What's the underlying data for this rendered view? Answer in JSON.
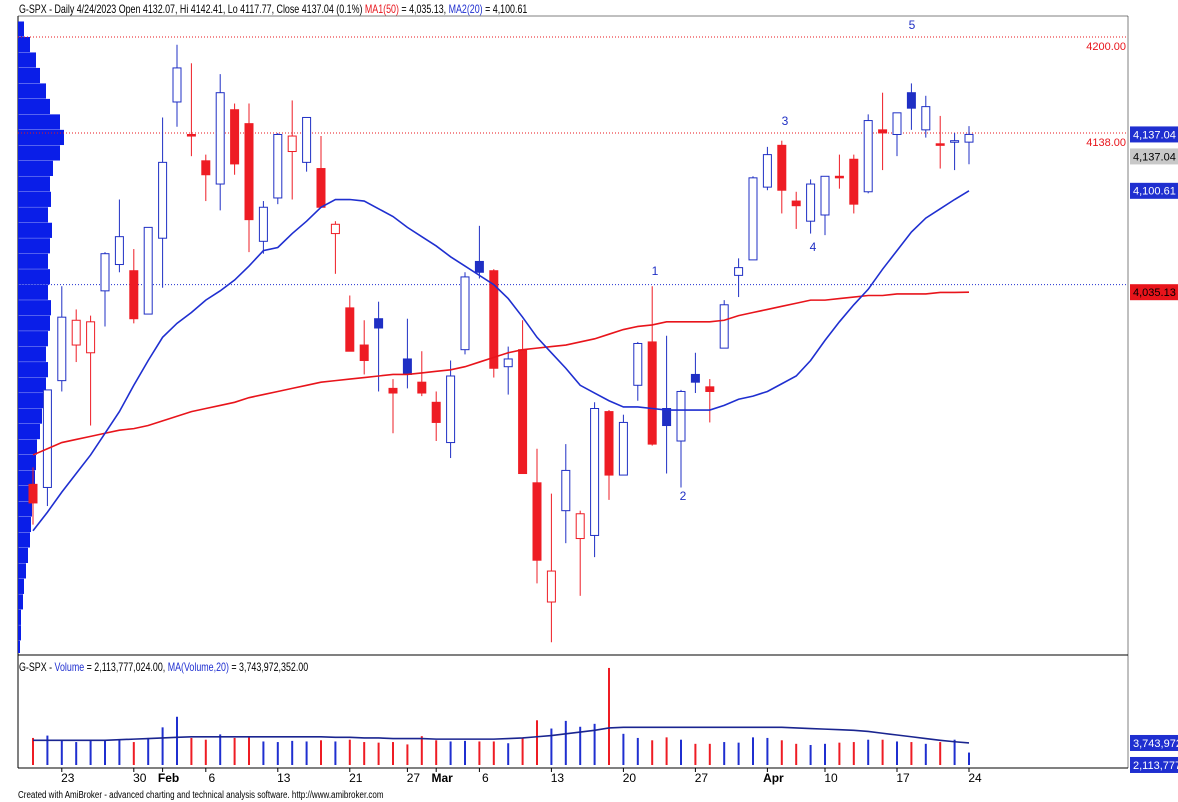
{
  "chart_data": [
    {
      "type": "candlestick",
      "title": "G-SPX - Daily 4/24/2023 Open 4132.07, Hi 4142.41, Lo 4117.77, Close 4137.04 (0.1%)",
      "categories": [
        null,
        null,
        "23",
        null,
        null,
        null,
        null,
        "30",
        null,
        "Feb",
        null,
        null,
        "6",
        null,
        null,
        null,
        null,
        "13",
        null,
        null,
        null,
        null,
        "21",
        null,
        null,
        null,
        "27",
        null,
        "Mar",
        null,
        null,
        "6",
        null,
        null,
        null,
        null,
        "13",
        null,
        null,
        null,
        null,
        "20",
        null,
        null,
        null,
        null,
        "27",
        null,
        null,
        null,
        null,
        "Apr",
        null,
        null,
        null,
        "10",
        null,
        null,
        null,
        null,
        "17",
        null,
        null,
        null,
        null,
        "24"
      ],
      "ohlc": {
        "open": [
          3911,
          3909,
          3978,
          4001,
          3996,
          4036,
          4053,
          4049,
          4021,
          4070,
          4158,
          4137,
          4120,
          4105,
          4153,
          4144,
          4068,
          4096,
          4126,
          4119,
          4115,
          4073,
          4025,
          4001,
          4018,
          3973,
          3992,
          3977,
          3964,
          3938,
          3998,
          4055,
          4049,
          3987,
          3998,
          3912,
          3835,
          3894,
          3876,
          3878,
          3958,
          3917,
          3975,
          4003,
          3960,
          3939,
          3982,
          3974,
          3999,
          4046,
          4056,
          4103,
          4130,
          4094,
          4081,
          4085,
          4110,
          4121,
          4100,
          4140,
          4137,
          4164,
          4140,
          4131,
          4132,
          4132.07
        ],
        "high": [
          3922,
          3972,
          4039,
          4024,
          4020,
          4061,
          4095,
          4063,
          4077,
          4148,
          4195,
          4183,
          4124,
          4176,
          4157,
          4157,
          4094,
          4138,
          4159,
          4148,
          4136,
          4081,
          4033,
          4017,
          4029,
          3979,
          4018,
          3997,
          3971,
          3991,
          4048,
          4078,
          4050,
          4000,
          4017,
          3934,
          3905,
          3937,
          3894,
          3964,
          3959,
          3956,
          4003,
          4039,
          4007,
          3972,
          3996,
          3979,
          4030,
          4057,
          4110,
          4129,
          4133,
          4100,
          4108,
          4110,
          4124,
          4124,
          4150,
          4164,
          4151,
          4170,
          4162,
          4149,
          4138,
          4142.41
        ],
        "low": [
          3885,
          3897,
          3971,
          3990,
          3949,
          4013,
          4048,
          4015,
          4021,
          4038,
          4142,
          4123,
          4094,
          4088,
          4111,
          4061,
          4060,
          4092,
          4095,
          4113,
          4090,
          4047,
          3997,
          3982,
          3971,
          3944,
          3973,
          3968,
          3939,
          3928,
          3995,
          4044,
          3980,
          3969,
          3918,
          3847,
          3809,
          3873,
          3839,
          3864,
          3901,
          3917,
          3965,
          3936,
          3918,
          3909,
          3970,
          3951,
          3999,
          4032,
          4056,
          4101,
          4086,
          4076,
          4073,
          4072,
          4102,
          4086,
          4099,
          4114,
          4123,
          4140,
          4135,
          4115,
          4114,
          4117.77
        ],
        "close": [
          3899,
          3972,
          4019,
          4017,
          4016,
          4060,
          4071,
          4018,
          4077,
          4119,
          4180,
          4136,
          4111,
          4164,
          4118,
          4082,
          4090,
          4137,
          4136,
          4148,
          4090,
          4079,
          3997,
          3991,
          4012,
          3970,
          3982,
          3970,
          3951,
          3981,
          4045,
          4048,
          3986,
          3992,
          3918,
          3862,
          3855,
          3920,
          3892,
          3960,
          3917,
          3951,
          4002,
          3937,
          3949,
          3971,
          3977,
          3971,
          4027,
          4051,
          4109,
          4124,
          4101,
          4091,
          4105,
          4110,
          4109,
          4092,
          4146,
          4138,
          4151,
          4154,
          4155,
          4130,
          4133,
          4137.04
        ]
      },
      "colors": {
        "rise": "#1f2fc4",
        "fall": "#ee1c24"
      },
      "series": [
        {
          "name": "MA1(50)",
          "color": "#e8141b",
          "value_label": "= 4,035.13,",
          "values": [
            3930,
            3934,
            3938,
            3940,
            3942,
            3944,
            3946,
            3947,
            3949,
            3952,
            3955,
            3958,
            3960,
            3962,
            3964,
            3967,
            3969,
            3971,
            3973,
            3975,
            3977,
            3978,
            3979,
            3980,
            3981,
            3982,
            3982,
            3983,
            3984,
            3985,
            3987,
            3990,
            3993,
            3996,
            3998,
            3999,
            4000,
            4001,
            4003,
            4005,
            4008,
            4011,
            4013,
            4014,
            4016,
            4016,
            4016,
            4016,
            4017,
            4020,
            4022,
            4024,
            4026,
            4028,
            4030,
            4030,
            4031,
            4032,
            4033,
            4033,
            4034,
            4034,
            4034,
            4035,
            4035,
            4035.13
          ]
        },
        {
          "name": "MA2(20)",
          "color": "#1f2fd0",
          "value_label": "= 4,100.61",
          "values": [
            3881,
            3893,
            3906,
            3918,
            3930,
            3944,
            3958,
            3975,
            3991,
            4006,
            4015,
            4022,
            4030,
            4036,
            4043,
            4052,
            4062,
            4064,
            4073,
            4081,
            4090,
            4095,
            4095,
            4094,
            4089,
            4084,
            4077,
            4071,
            4065,
            4058,
            4052,
            4046,
            4040,
            4031,
            4019,
            4006,
            3996,
            3986,
            3975,
            3970,
            3965,
            3961,
            3961,
            3960,
            3959,
            3959,
            3959,
            3959,
            3962,
            3966,
            3968,
            3971,
            3976,
            3981,
            3991,
            4004,
            4016,
            4027,
            4037,
            4050,
            4062,
            4074,
            4083,
            4089,
            4095,
            4100.61
          ]
        }
      ],
      "ylim": [
        3804,
        4204.5
      ],
      "levels": [
        {
          "value": 4200,
          "label": "4200.00",
          "color": "#e8141b"
        },
        {
          "value": 4138,
          "label": "4138.00",
          "color": "#e8141b"
        },
        {
          "value": 4040,
          "color": "#1f2fd0"
        }
      ],
      "price_labels": [
        {
          "value": 4137.04,
          "label": "4,137.04",
          "color": "#1f2fd0",
          "text_color": "#ffffff"
        },
        {
          "value": 4137.04,
          "label": "4,137.04",
          "color": "#c8c8c8",
          "text_color": "#000000"
        },
        {
          "value": 4100.61,
          "label": "4,100.61",
          "color": "#1f2fd0",
          "text_color": "#ffffff"
        },
        {
          "value": 4035.13,
          "label": "4,035.13",
          "color": "#e8141b",
          "text_color": "#000000"
        }
      ],
      "annotations": [
        "1",
        "2",
        "3",
        "4",
        "5"
      ],
      "volume_profile": {
        "color": "#0a1ee8",
        "bins": [
          3800,
          3810,
          3820,
          3830,
          3840,
          3850,
          3860,
          3870,
          3880,
          3890,
          3900,
          3910,
          3920,
          3930,
          3940,
          3950,
          3960,
          3970,
          3980,
          3990,
          4000,
          4010,
          4020,
          4030,
          4040,
          4050,
          4060,
          4070,
          4080,
          4090,
          4100,
          4110,
          4120,
          4130,
          4140,
          4150,
          4160,
          4170,
          4180,
          4190,
          4200,
          4210
        ],
        "values": [
          2,
          3,
          3,
          5,
          6,
          8,
          10,
          12,
          13,
          14,
          15,
          17,
          18,
          19,
          22,
          24,
          25,
          28,
          30,
          28,
          30,
          32,
          33,
          30,
          32,
          30,
          32,
          34,
          30,
          33,
          32,
          35,
          42,
          46,
          42,
          32,
          28,
          22,
          18,
          12,
          6
        ]
      }
    },
    {
      "type": "bar",
      "title": "G-SPX -",
      "up_color": "#1f2fd0",
      "down_color": "#ee1c24",
      "series": [
        {
          "name": "Volume",
          "color": "#1f2fd0",
          "value_label": "= 2,113,777,024.00,",
          "values": [
            4600000000.0,
            5000000000.0,
            4300000000.0,
            3900000000.0,
            4300000000.0,
            4100000000.0,
            4200000000.0,
            3900000000.0,
            4600000000.0,
            6400000000.0,
            8200000000.0,
            4600000000.0,
            4300000000.0,
            5200000000.0,
            4600000000.0,
            4800000000.0,
            4000000000.0,
            3900000000.0,
            4100000000.0,
            4000000000.0,
            4200000000.0,
            4000000000.0,
            4300000000.0,
            3900000000.0,
            3800000000.0,
            3900000000.0,
            3500000000.0,
            4900000000.0,
            4200000000.0,
            4000000000.0,
            4100000000.0,
            4000000000.0,
            4000000000.0,
            3700000000.0,
            4600000000.0,
            7600000000.0,
            6200000000.0,
            7500000000.0,
            6500000000.0,
            7000000000.0,
            16500000000.0,
            5300000000.0,
            4600000000.0,
            4200000000.0,
            4700000000.0,
            4300000000.0,
            3600000000.0,
            3600000000.0,
            3900000000.0,
            3800000000.0,
            4700000000.0,
            4600000000.0,
            4200000000.0,
            3600000000.0,
            3400000000.0,
            3600000000.0,
            3800000000.0,
            3900000000.0,
            4300000000.0,
            4300000000.0,
            4000000000.0,
            3900000000.0,
            3600000000.0,
            3900000000.0,
            4300000000.0,
            2113777024
          ]
        },
        {
          "name": "MA(Volume,20)",
          "color": "#1a2590",
          "value_label": "= 3,743,972,352.00",
          "values": [
            4200000000.0,
            4200000000.0,
            4200000000.0,
            4200000000.0,
            4200000000.0,
            4200000000.0,
            4300000000.0,
            4400000000.0,
            4500000000.0,
            4600000000.0,
            4700000000.0,
            4800000000.0,
            4800000000.0,
            4800000000.0,
            4800000000.0,
            4800000000.0,
            4800000000.0,
            4800000000.0,
            4800000000.0,
            4800000000.0,
            4800000000.0,
            4700000000.0,
            4700000000.0,
            4600000000.0,
            4600000000.0,
            4500000000.0,
            4500000000.0,
            4500000000.0,
            4400000000.0,
            4400000000.0,
            4400000000.0,
            4400000000.0,
            4400000000.0,
            4500000000.0,
            4600000000.0,
            4800000000.0,
            5000000000.0,
            5300000000.0,
            5600000000.0,
            5900000000.0,
            6300000000.0,
            6400000000.0,
            6400000000.0,
            6400000000.0,
            6400000000.0,
            6400000000.0,
            6400000000.0,
            6400000000.0,
            6400000000.0,
            6400000000.0,
            6400000000.0,
            6400000000.0,
            6400000000.0,
            6300000000.0,
            6200000000.0,
            6100000000.0,
            6000000000.0,
            5900000000.0,
            5700000000.0,
            5400000000.0,
            5100000000.0,
            4800000000.0,
            4500000000.0,
            4200000000.0,
            3950000000.0,
            3743972352
          ]
        }
      ],
      "ylim": [
        0,
        17000000000
      ],
      "axis_labels": [
        {
          "value": 3743972352,
          "label": "3,743,972,352.00",
          "color": "#1f2fd0",
          "text_color": "#ffffff"
        },
        {
          "value": 2113777024,
          "label": "2,113,777,024.00",
          "color": "#1f2fd0",
          "text_color": "#ffffff"
        }
      ]
    }
  ],
  "footer": "Created with AmiBroker - advanced charting and technical analysis software. http://www.amibroker.com"
}
